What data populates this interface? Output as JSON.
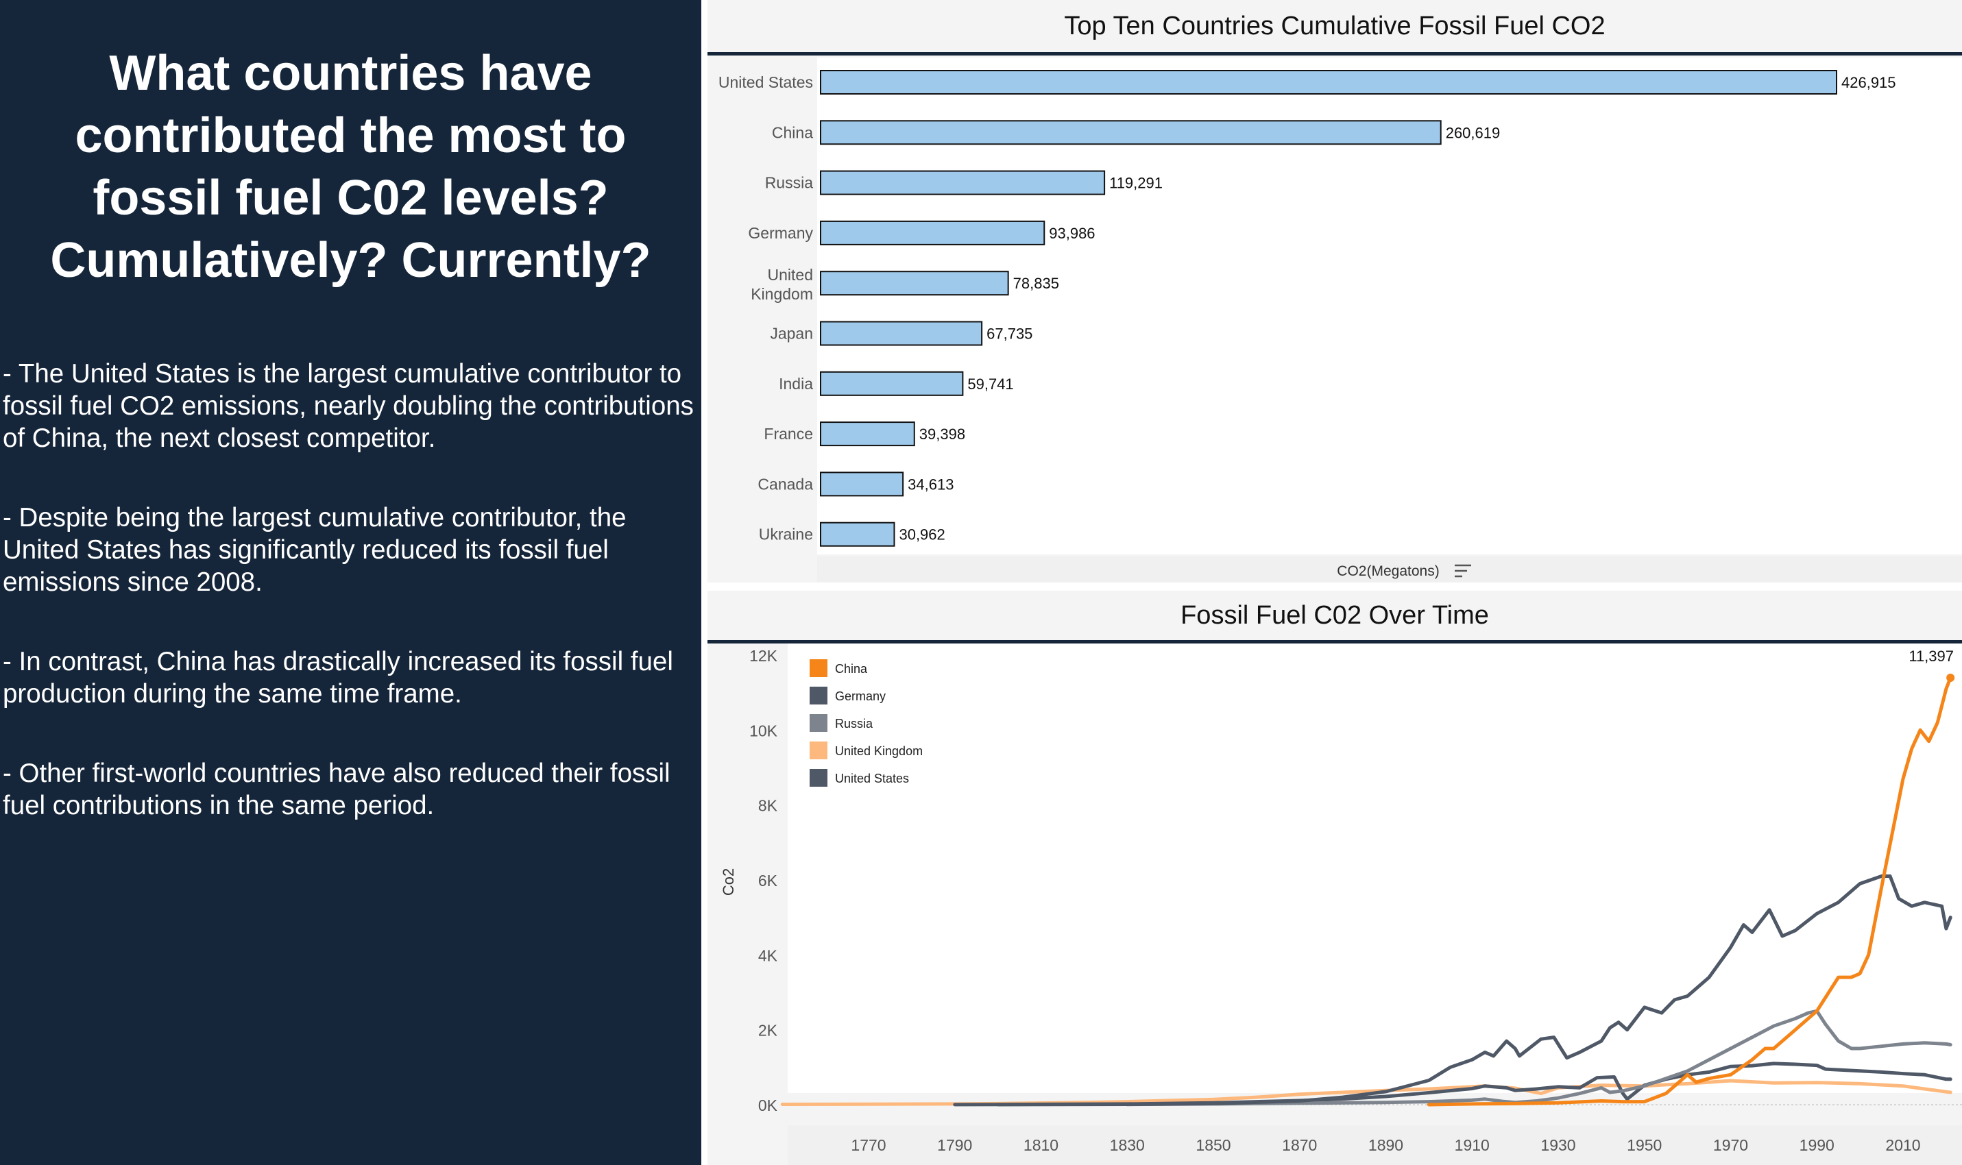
{
  "left_panel": {
    "title": "What countries have contributed the most to fossil fuel C02 levels? Cumulatively? Currently?",
    "bullets": [
      "- The United States is the largest cumulative contributor to fossil fuel CO2 emissions, nearly doubling the contributions of China, the next closest competitor.",
      "- Despite being the largest cumulative contributor, the United States has significantly reduced its fossil fuel emissions since 2008.",
      "- In contrast, China has drastically increased its fossil fuel production during the same time frame.",
      "- Other first-world countries have also reduced their fossil fuel contributions in the same period."
    ],
    "background_color": "#16263a"
  },
  "chart_data": [
    {
      "type": "bar",
      "orientation": "horizontal",
      "title": "Top Ten Countries Cumulative Fossil Fuel CO2",
      "xlabel": "CO2(Megatons)",
      "sort_icon": "sort-descending-icon",
      "categories": [
        "United States",
        "China",
        "Russia",
        "Germany",
        "United Kingdom",
        "Japan",
        "India",
        "France",
        "Canada",
        "Ukraine"
      ],
      "values": [
        426915,
        260619,
        119291,
        93986,
        78835,
        67735,
        59741,
        39398,
        34613,
        30962
      ],
      "value_labels": [
        "426,915",
        "260,619",
        "119,291",
        "93,986",
        "78,835",
        "67,735",
        "59,741",
        "39,398",
        "34,613",
        "30,962"
      ],
      "bar_color": "#9fc9ea",
      "bar_outline": "#111111"
    },
    {
      "type": "line",
      "title": "Fossil Fuel C02 Over Time",
      "ylabel": "Co2",
      "ylim": [
        0,
        12000
      ],
      "xlim": [
        1750,
        2021
      ],
      "y_ticks": [
        0,
        2000,
        4000,
        6000,
        8000,
        10000,
        12000
      ],
      "y_tick_labels": [
        "0K",
        "2K",
        "4K",
        "6K",
        "8K",
        "10K",
        "12K"
      ],
      "x_ticks": [
        "1770",
        "1790",
        "1810",
        "1830",
        "1850",
        "1870",
        "1890",
        "1910",
        "1930",
        "1950",
        "1970",
        "1990",
        "2010"
      ],
      "legend": [
        "China",
        "Germany",
        "Russia",
        "United Kingdom",
        "United States"
      ],
      "legend_position": "top-left",
      "end_annotation": "11,397",
      "series": [
        {
          "name": "United Kingdom",
          "color": "#fdb97d",
          "x": [
            1750,
            1790,
            1800,
            1820,
            1830,
            1850,
            1860,
            1870,
            1880,
            1890,
            1900,
            1910,
            1913,
            1920,
            1926,
            1930,
            1940,
            1950,
            1956,
            1960,
            1970,
            1980,
            1990,
            2000,
            2010,
            2015,
            2021
          ],
          "y": [
            9,
            20,
            30,
            60,
            80,
            140,
            200,
            280,
            330,
            380,
            420,
            480,
            500,
            440,
            300,
            450,
            520,
            500,
            540,
            560,
            640,
            580,
            590,
            560,
            500,
            420,
            330
          ]
        },
        {
          "name": "Germany",
          "color": "#4f5866",
          "x": [
            1790,
            1800,
            1830,
            1850,
            1860,
            1870,
            1880,
            1890,
            1900,
            1910,
            1913,
            1918,
            1920,
            1925,
            1930,
            1935,
            1939,
            1943,
            1945,
            1946,
            1950,
            1955,
            1960,
            1965,
            1970,
            1975,
            1980,
            1985,
            1990,
            1992,
            2000,
            2005,
            2010,
            2015,
            2020,
            2021
          ],
          "y": [
            2,
            5,
            20,
            50,
            80,
            110,
            150,
            220,
            320,
            430,
            500,
            450,
            380,
            420,
            480,
            450,
            720,
            740,
            300,
            150,
            520,
            680,
            800,
            870,
            1020,
            1040,
            1100,
            1080,
            1050,
            950,
            900,
            870,
            830,
            800,
            680,
            680
          ]
        },
        {
          "name": "Russia",
          "color": "#7e848d",
          "x": [
            1830,
            1850,
            1870,
            1890,
            1900,
            1910,
            1913,
            1917,
            1920,
            1925,
            1930,
            1935,
            1940,
            1942,
            1945,
            1950,
            1955,
            1960,
            1965,
            1970,
            1975,
            1980,
            1985,
            1988,
            1990,
            1992,
            1995,
            1998,
            2000,
            2005,
            2010,
            2015,
            2020,
            2021
          ],
          "y": [
            5,
            20,
            40,
            60,
            80,
            120,
            150,
            90,
            60,
            100,
            180,
            300,
            450,
            330,
            370,
            500,
            700,
            900,
            1200,
            1500,
            1800,
            2100,
            2300,
            2450,
            2500,
            2150,
            1700,
            1500,
            1500,
            1560,
            1620,
            1650,
            1620,
            1600
          ]
        },
        {
          "name": "United States",
          "color": "#4f5866",
          "x": [
            1800,
            1830,
            1850,
            1870,
            1880,
            1890,
            1900,
            1905,
            1910,
            1913,
            1915,
            1918,
            1920,
            1921,
            1926,
            1929,
            1932,
            1935,
            1940,
            1942,
            1944,
            1946,
            1950,
            1954,
            1957,
            1960,
            1965,
            1970,
            1973,
            1975,
            1979,
            1982,
            1985,
            1990,
            1995,
            2000,
            2005,
            2007,
            2009,
            2012,
            2015,
            2019,
            2020,
            2021
          ],
          "y": [
            1,
            10,
            30,
            100,
            200,
            350,
            650,
            1000,
            1200,
            1400,
            1300,
            1700,
            1500,
            1300,
            1750,
            1800,
            1250,
            1400,
            1700,
            2050,
            2200,
            2000,
            2600,
            2450,
            2800,
            2900,
            3400,
            4200,
            4800,
            4600,
            5200,
            4500,
            4650,
            5100,
            5400,
            5900,
            6100,
            6100,
            5500,
            5300,
            5400,
            5300,
            4700,
            5000
          ]
        },
        {
          "name": "China",
          "color": "#f58518",
          "x": [
            1900,
            1910,
            1920,
            1930,
            1940,
            1945,
            1950,
            1955,
            1958,
            1960,
            1962,
            1965,
            1970,
            1975,
            1978,
            1980,
            1985,
            1990,
            1995,
            1998,
            2000,
            2002,
            2005,
            2010,
            2012,
            2014,
            2016,
            2018,
            2020,
            2021
          ],
          "y": [
            0,
            20,
            30,
            50,
            100,
            80,
            80,
            300,
            600,
            800,
            600,
            700,
            800,
            1200,
            1500,
            1500,
            2000,
            2500,
            3400,
            3400,
            3500,
            4000,
            5800,
            8700,
            9500,
            10000,
            9700,
            10200,
            11100,
            11397
          ]
        }
      ]
    }
  ]
}
